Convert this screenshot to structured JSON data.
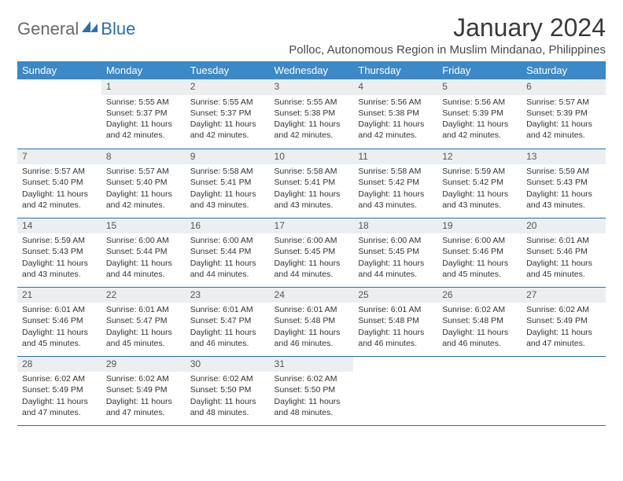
{
  "brand": {
    "part1": "General",
    "part2": "Blue"
  },
  "title": "January 2024",
  "location": "Polloc, Autonomous Region in Muslim Mindanao, Philippines",
  "colors": {
    "header_bg": "#3d88c7",
    "header_text": "#ffffff",
    "daynum_bg": "#eceff1",
    "row_divider": "#2a6fb0",
    "brand_gray": "#6a6a6a",
    "brand_blue": "#2a6fb0"
  },
  "weekdays": [
    "Sunday",
    "Monday",
    "Tuesday",
    "Wednesday",
    "Thursday",
    "Friday",
    "Saturday"
  ],
  "weeks": [
    [
      null,
      {
        "n": "1",
        "sr": "5:55 AM",
        "ss": "5:37 PM",
        "dl": "11 hours and 42 minutes."
      },
      {
        "n": "2",
        "sr": "5:55 AM",
        "ss": "5:37 PM",
        "dl": "11 hours and 42 minutes."
      },
      {
        "n": "3",
        "sr": "5:55 AM",
        "ss": "5:38 PM",
        "dl": "11 hours and 42 minutes."
      },
      {
        "n": "4",
        "sr": "5:56 AM",
        "ss": "5:38 PM",
        "dl": "11 hours and 42 minutes."
      },
      {
        "n": "5",
        "sr": "5:56 AM",
        "ss": "5:39 PM",
        "dl": "11 hours and 42 minutes."
      },
      {
        "n": "6",
        "sr": "5:57 AM",
        "ss": "5:39 PM",
        "dl": "11 hours and 42 minutes."
      }
    ],
    [
      {
        "n": "7",
        "sr": "5:57 AM",
        "ss": "5:40 PM",
        "dl": "11 hours and 42 minutes."
      },
      {
        "n": "8",
        "sr": "5:57 AM",
        "ss": "5:40 PM",
        "dl": "11 hours and 42 minutes."
      },
      {
        "n": "9",
        "sr": "5:58 AM",
        "ss": "5:41 PM",
        "dl": "11 hours and 43 minutes."
      },
      {
        "n": "10",
        "sr": "5:58 AM",
        "ss": "5:41 PM",
        "dl": "11 hours and 43 minutes."
      },
      {
        "n": "11",
        "sr": "5:58 AM",
        "ss": "5:42 PM",
        "dl": "11 hours and 43 minutes."
      },
      {
        "n": "12",
        "sr": "5:59 AM",
        "ss": "5:42 PM",
        "dl": "11 hours and 43 minutes."
      },
      {
        "n": "13",
        "sr": "5:59 AM",
        "ss": "5:43 PM",
        "dl": "11 hours and 43 minutes."
      }
    ],
    [
      {
        "n": "14",
        "sr": "5:59 AM",
        "ss": "5:43 PM",
        "dl": "11 hours and 43 minutes."
      },
      {
        "n": "15",
        "sr": "6:00 AM",
        "ss": "5:44 PM",
        "dl": "11 hours and 44 minutes."
      },
      {
        "n": "16",
        "sr": "6:00 AM",
        "ss": "5:44 PM",
        "dl": "11 hours and 44 minutes."
      },
      {
        "n": "17",
        "sr": "6:00 AM",
        "ss": "5:45 PM",
        "dl": "11 hours and 44 minutes."
      },
      {
        "n": "18",
        "sr": "6:00 AM",
        "ss": "5:45 PM",
        "dl": "11 hours and 44 minutes."
      },
      {
        "n": "19",
        "sr": "6:00 AM",
        "ss": "5:46 PM",
        "dl": "11 hours and 45 minutes."
      },
      {
        "n": "20",
        "sr": "6:01 AM",
        "ss": "5:46 PM",
        "dl": "11 hours and 45 minutes."
      }
    ],
    [
      {
        "n": "21",
        "sr": "6:01 AM",
        "ss": "5:46 PM",
        "dl": "11 hours and 45 minutes."
      },
      {
        "n": "22",
        "sr": "6:01 AM",
        "ss": "5:47 PM",
        "dl": "11 hours and 45 minutes."
      },
      {
        "n": "23",
        "sr": "6:01 AM",
        "ss": "5:47 PM",
        "dl": "11 hours and 46 minutes."
      },
      {
        "n": "24",
        "sr": "6:01 AM",
        "ss": "5:48 PM",
        "dl": "11 hours and 46 minutes."
      },
      {
        "n": "25",
        "sr": "6:01 AM",
        "ss": "5:48 PM",
        "dl": "11 hours and 46 minutes."
      },
      {
        "n": "26",
        "sr": "6:02 AM",
        "ss": "5:48 PM",
        "dl": "11 hours and 46 minutes."
      },
      {
        "n": "27",
        "sr": "6:02 AM",
        "ss": "5:49 PM",
        "dl": "11 hours and 47 minutes."
      }
    ],
    [
      {
        "n": "28",
        "sr": "6:02 AM",
        "ss": "5:49 PM",
        "dl": "11 hours and 47 minutes."
      },
      {
        "n": "29",
        "sr": "6:02 AM",
        "ss": "5:49 PM",
        "dl": "11 hours and 47 minutes."
      },
      {
        "n": "30",
        "sr": "6:02 AM",
        "ss": "5:50 PM",
        "dl": "11 hours and 48 minutes."
      },
      {
        "n": "31",
        "sr": "6:02 AM",
        "ss": "5:50 PM",
        "dl": "11 hours and 48 minutes."
      },
      null,
      null,
      null
    ]
  ],
  "labels": {
    "sunrise": "Sunrise:",
    "sunset": "Sunset:",
    "daylight": "Daylight:"
  }
}
